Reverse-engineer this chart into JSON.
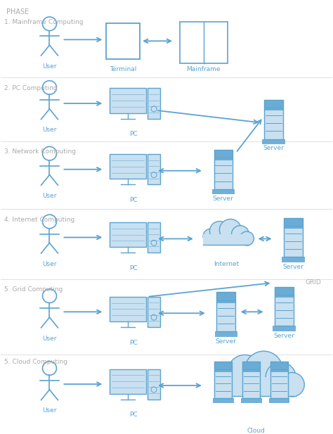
{
  "bg_color": "#ffffff",
  "blue": "#5ba3d0",
  "blue_fill": "#c8e0f0",
  "blue_dark": "#3d85b0",
  "gray_text": "#888888",
  "rows": [
    0.895,
    0.745,
    0.59,
    0.43,
    0.255,
    0.085
  ],
  "dividers": [
    0.82,
    0.668,
    0.51,
    0.345,
    0.168
  ],
  "phase_labels": [
    "1. Mainframe Computing",
    "2. PC Computing",
    "3. Network Computing",
    "4. Internet Computing",
    "5. Grid Computing",
    "5. Cloud Computing"
  ]
}
